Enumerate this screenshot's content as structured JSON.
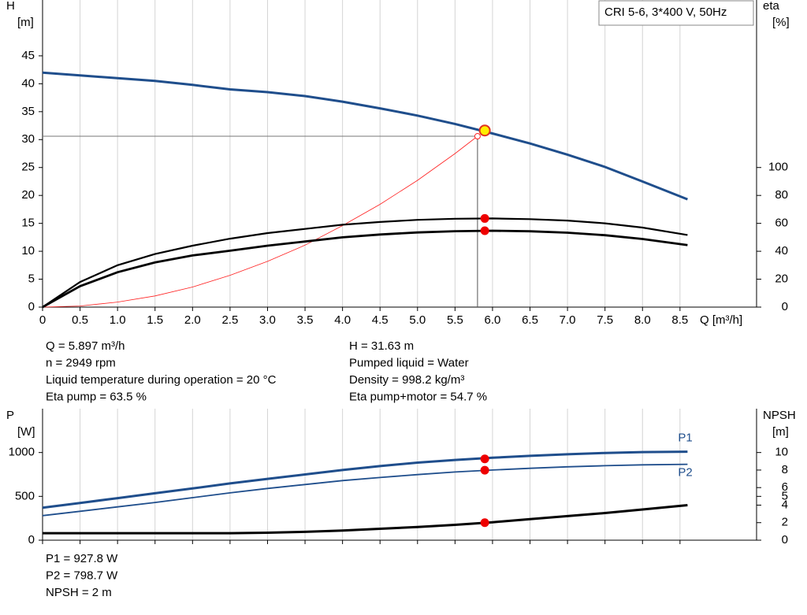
{
  "chart_data": [
    {
      "type": "line",
      "title": "CRI 5-6, 3*400 V, 50Hz",
      "y_label": [
        "H",
        "[m]"
      ],
      "y2_label": [
        "eta",
        "[%]"
      ],
      "x_label": "Q [m³/h]",
      "xlim": [
        0,
        9.5
      ],
      "xticks": [
        0,
        0.5,
        {
          "value": 1,
          "label": "1.0"
        },
        1.5,
        {
          "value": 2,
          "label": "2.0"
        },
        2.5,
        {
          "value": 3,
          "label": "3.0"
        },
        3.5,
        {
          "value": 4,
          "label": "4.0"
        },
        4.5,
        {
          "value": 5,
          "label": "5.0"
        },
        5.5,
        {
          "value": 6,
          "label": "6.0"
        },
        6.5,
        {
          "value": 7,
          "label": "7.0"
        },
        7.5,
        {
          "value": 8,
          "label": "8.0"
        },
        8.5
      ],
      "ylim": [
        0,
        55
      ],
      "yticks": [
        0,
        5,
        10,
        15,
        20,
        25,
        30,
        35,
        40,
        45
      ],
      "y2lim": [
        0,
        220
      ],
      "y2ticks": [
        0,
        20,
        40,
        60,
        80,
        100
      ],
      "grid": true,
      "series": [
        {
          "axis": "y",
          "color": "#ff2020",
          "width": 0.8,
          "style": "system",
          "x": [
            0,
            0.5,
            1,
            1.5,
            2,
            2.5,
            3,
            3.5,
            4,
            4.5,
            5,
            5.5,
            5.8
          ],
          "values": [
            0,
            0.2,
            0.9,
            2,
            3.6,
            5.7,
            8.2,
            11.1,
            14.6,
            18.4,
            22.7,
            27.5,
            30.6
          ]
        },
        {
          "axis": "y",
          "color": "#1f4e8c",
          "width": 3,
          "x": [
            0,
            0.5,
            1,
            1.5,
            2,
            2.5,
            3,
            3.5,
            4,
            4.5,
            5,
            5.5,
            6,
            6.5,
            7,
            7.5,
            8,
            8.6
          ],
          "values": [
            42,
            41.5,
            41,
            40.5,
            39.8,
            39,
            38.5,
            37.8,
            36.8,
            35.6,
            34.3,
            32.8,
            31.1,
            29.3,
            27.3,
            25.1,
            22.5,
            19.3
          ]
        },
        {
          "axis": "y2",
          "color": "#000000",
          "width": 2.2,
          "x": [
            0,
            0.5,
            1,
            1.5,
            2,
            2.5,
            3,
            3.5,
            4,
            4.5,
            5,
            5.5,
            6,
            6.5,
            7,
            7.5,
            8,
            8.6
          ],
          "values": [
            0,
            18,
            30,
            38,
            44,
            49,
            53,
            56,
            59,
            61,
            62.5,
            63.3,
            63.5,
            63,
            62,
            60,
            57,
            51.7
          ]
        },
        {
          "axis": "y2",
          "color": "#000000",
          "width": 2.8,
          "x": [
            0,
            0.5,
            1,
            1.5,
            2,
            2.5,
            3,
            3.5,
            4,
            4.5,
            5,
            5.5,
            6,
            6.5,
            7,
            7.5,
            8,
            8.6
          ],
          "values": [
            0,
            15,
            25,
            32,
            37,
            40.4,
            44,
            47,
            50,
            52,
            53.5,
            54.4,
            54.7,
            54.3,
            53.3,
            51.5,
            48.8,
            44.4
          ]
        },
        {
          "axis": "y2",
          "color": "#ee0000",
          "marker": "dot",
          "x": [
            5.897,
            5.897
          ],
          "values": [
            63.5,
            54.7
          ]
        },
        {
          "axis": "y",
          "color": "#ffee00",
          "marker": "ring",
          "x": [
            5.897
          ],
          "values": [
            31.63
          ]
        }
      ],
      "notes": [
        [
          "Q = 5.897 m³/h",
          "n = 2949 rpm",
          "Liquid temperature during operation = 20 °C",
          "Eta pump = 63.5 %"
        ],
        [
          "H = 31.63 m",
          "Pumped liquid = Water",
          "Density = 998.2 kg/m³",
          "Eta pump+motor = 54.7 %"
        ]
      ]
    },
    {
      "type": "line",
      "y_label": [
        "P",
        "[W]"
      ],
      "y2_label": [
        "NPSH",
        "[m]"
      ],
      "xlim": [
        0,
        9.5
      ],
      "ylim": [
        0,
        1500
      ],
      "yticks": [
        0,
        500,
        1000
      ],
      "y2lim": [
        0,
        15
      ],
      "y2ticks": [
        0,
        2,
        4,
        5,
        6,
        8,
        10
      ],
      "grid": true,
      "series": [
        {
          "name": "P1",
          "axis": "y",
          "color": "#1f4e8c",
          "width": 3,
          "x": [
            0,
            0.5,
            1,
            1.5,
            2,
            2.5,
            3,
            3.5,
            4,
            4.5,
            5,
            5.5,
            6,
            6.5,
            7,
            7.5,
            8,
            8.6
          ],
          "values": [
            370,
            425,
            480,
            535,
            590,
            648,
            700,
            750,
            800,
            845,
            885,
            915,
            940,
            962,
            980,
            995,
            1005,
            1010
          ]
        },
        {
          "name": "P2",
          "axis": "y",
          "color": "#1f4e8c",
          "width": 1.8,
          "x": [
            0,
            0.5,
            1,
            1.5,
            2,
            2.5,
            3,
            3.5,
            4,
            4.5,
            5,
            5.5,
            6,
            6.5,
            7,
            7.5,
            8,
            8.6
          ],
          "values": [
            280,
            330,
            380,
            430,
            485,
            540,
            590,
            635,
            680,
            715,
            748,
            778,
            800,
            820,
            837,
            850,
            860,
            866
          ]
        },
        {
          "axis": "y2",
          "color": "#000000",
          "width": 3,
          "x": [
            0,
            0.5,
            1,
            1.5,
            2,
            2.5,
            3,
            3.5,
            4,
            4.5,
            5,
            5.5,
            6,
            6.5,
            7,
            7.5,
            8,
            8.6
          ],
          "values": [
            0.8,
            0.8,
            0.8,
            0.8,
            0.8,
            0.8,
            0.85,
            0.95,
            1.1,
            1.3,
            1.5,
            1.75,
            2.05,
            2.4,
            2.75,
            3.1,
            3.5,
            4.0
          ]
        },
        {
          "axis": "y",
          "color": "#ee0000",
          "marker": "dot",
          "x": [
            5.897,
            5.897
          ],
          "values": [
            927.8,
            798.7
          ]
        },
        {
          "axis": "y2",
          "color": "#ee0000",
          "marker": "dot",
          "x": [
            5.897
          ],
          "values": [
            2
          ]
        }
      ],
      "notes": [
        [
          "P1 = 927.8 W",
          "P2 = 798.7 W",
          "NPSH = 2 m"
        ]
      ]
    }
  ]
}
